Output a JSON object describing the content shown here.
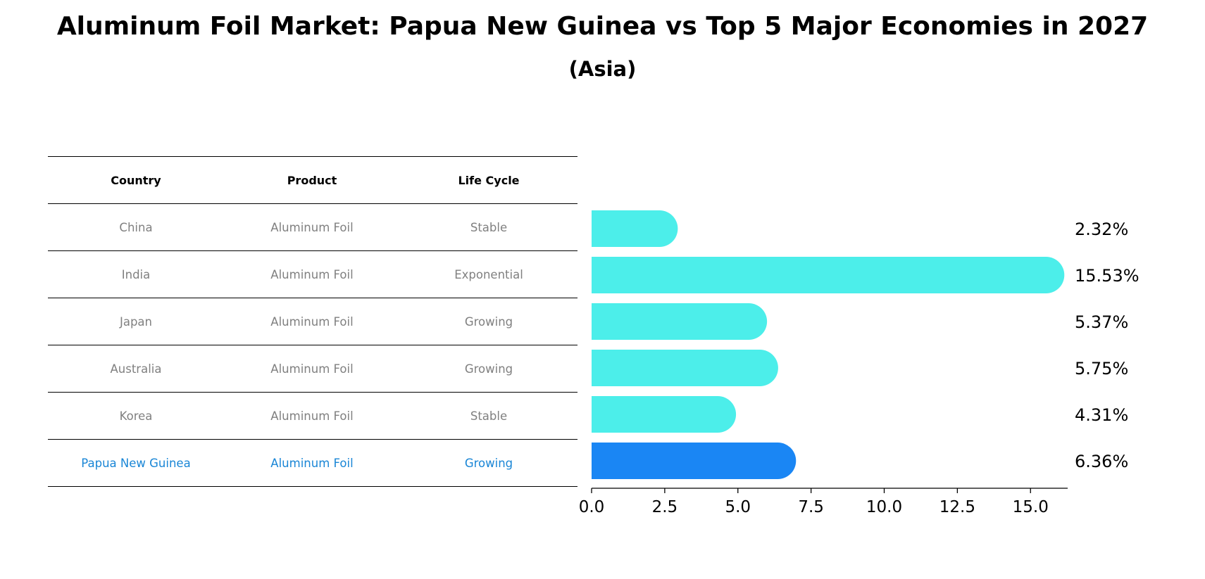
{
  "title": "Aluminum Foil Market: Papua New Guinea vs Top 5 Major Economies in 2027",
  "subtitle": "(Asia)",
  "table": {
    "headers": {
      "country": "Country",
      "product": "Product",
      "life_cycle": "Life Cycle"
    },
    "rows": [
      {
        "country": "China",
        "product": "Aluminum Foil",
        "life_cycle": "Stable"
      },
      {
        "country": "India",
        "product": "Aluminum Foil",
        "life_cycle": "Exponential"
      },
      {
        "country": "Japan",
        "product": "Aluminum Foil",
        "life_cycle": "Growing"
      },
      {
        "country": "Australia",
        "product": "Aluminum Foil",
        "life_cycle": "Growing"
      },
      {
        "country": "Korea",
        "product": "Aluminum Foil",
        "life_cycle": "Stable"
      },
      {
        "country": "Papua New Guinea",
        "product": "Aluminum Foil",
        "life_cycle": "Growing"
      }
    ]
  },
  "colors": {
    "bar": "#4ceeea",
    "highlight": "#1a86f4",
    "highlight_text": "#1a86d6"
  },
  "chart_data": {
    "type": "bar",
    "orientation": "horizontal",
    "title": "Aluminum Foil Market: Papua New Guinea vs Top 5 Major Economies in 2027",
    "subtitle": "(Asia)",
    "categories": [
      "China",
      "India",
      "Japan",
      "Australia",
      "Korea",
      "Papua New Guinea"
    ],
    "values": [
      2.32,
      15.53,
      5.37,
      5.75,
      4.31,
      6.36
    ],
    "value_labels": [
      "2.32%",
      "15.53%",
      "5.37%",
      "5.75%",
      "4.31%",
      "6.36%"
    ],
    "highlight_index": 5,
    "xlim": [
      0,
      16.3
    ],
    "xticks": [
      0.0,
      2.5,
      5.0,
      7.5,
      10.0,
      12.5,
      15.0
    ],
    "xtick_labels": [
      "0.0",
      "2.5",
      "5.0",
      "7.5",
      "10.0",
      "12.5",
      "15.0"
    ],
    "xlabel": "",
    "ylabel": ""
  }
}
